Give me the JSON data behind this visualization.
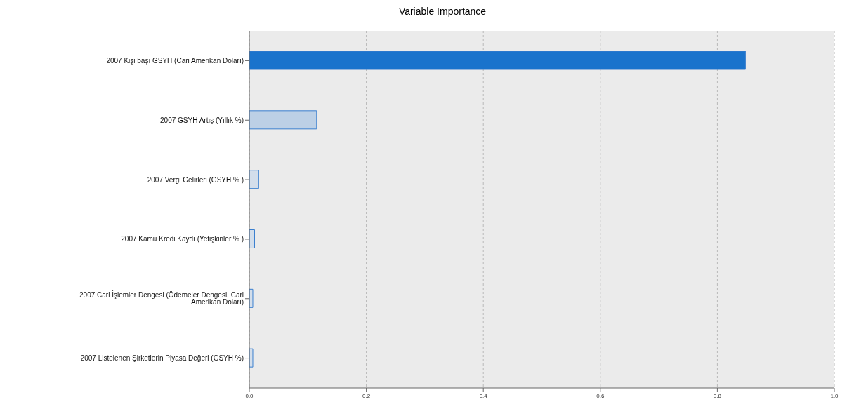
{
  "chart_data": {
    "type": "bar",
    "orientation": "horizontal",
    "title": "Variable Importance",
    "categories": [
      "2007 Kişi başı GSYH (Cari Amerikan Doları)",
      "2007 GSYH Artış (Yıllık %)",
      "2007 Vergi Gelirleri (GSYH % )",
      "2007 Kamu Kredi Kaydı (Yetişkinler % )",
      "2007 Cari İşlemler Dengesi (Ödemeler Dengesi, Cari Amerikan Doları)",
      "2007 Listelenen Şirketlerin Piyasa Değeri (GSYH %)"
    ],
    "values": [
      0.848,
      0.115,
      0.016,
      0.009,
      0.006,
      0.006
    ],
    "colors": [
      "#1a73cc",
      "#bcd0e6",
      "#d3deeb",
      "#d3deeb",
      "#d3deeb",
      "#d3deeb"
    ],
    "xlim": [
      0,
      1
    ],
    "xticks": [
      {
        "value": 0,
        "label": "0.0"
      },
      0.2,
      0.4,
      0.6,
      0.8,
      {
        "value": 1,
        "label": "1.0"
      }
    ],
    "grid": "x"
  }
}
